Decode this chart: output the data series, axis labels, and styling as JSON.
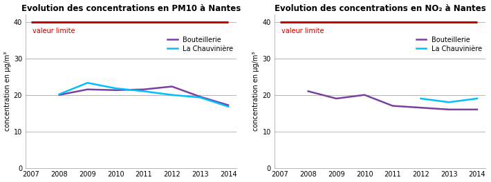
{
  "pm10": {
    "title": "Evolution des concentrations en PM10 à Nantes",
    "years": [
      2007,
      2008,
      2009,
      2010,
      2011,
      2012,
      2013,
      2014
    ],
    "bouteillerie": [
      null,
      20.0,
      21.5,
      21.3,
      21.5,
      22.3,
      19.5,
      17.2
    ],
    "chauviniere": [
      null,
      20.2,
      23.3,
      21.8,
      21.0,
      20.0,
      19.3,
      16.8
    ],
    "valeur_limite": 40,
    "ylim": [
      0,
      42
    ],
    "yticks": [
      0,
      10,
      20,
      30,
      40
    ]
  },
  "no2": {
    "title": "Evolution des concentrations en NO₂ à Nantes",
    "years": [
      2007,
      2008,
      2009,
      2010,
      2011,
      2012,
      2013,
      2014
    ],
    "bouteillerie": [
      null,
      21.0,
      19.0,
      20.0,
      17.0,
      16.5,
      16.0,
      16.0
    ],
    "chauviniere": [
      null,
      null,
      null,
      null,
      null,
      19.0,
      18.0,
      19.0
    ],
    "valeur_limite": 40,
    "ylim": [
      0,
      42
    ],
    "yticks": [
      0,
      10,
      20,
      30,
      40
    ]
  },
  "color_bouteillerie": "#7B3FA0",
  "color_chauviniere": "#00BFFF",
  "color_valeur_limite": "#CC0000",
  "color_valeur_limite_text": "#CC0000",
  "ylabel": "concentration en µg/m³",
  "valeur_limite_label": "valeur limite",
  "legend_bouteillerie": "Bouteillerie",
  "legend_chauviniere": "La Chauvinière",
  "background_color": "#ffffff",
  "grid_color": "#999999",
  "title_fontsize": 8.5,
  "axis_fontsize": 7.0,
  "ylabel_fontsize": 7.0,
  "legend_fontsize": 7.0,
  "valeur_limite_fontsize": 7.0
}
